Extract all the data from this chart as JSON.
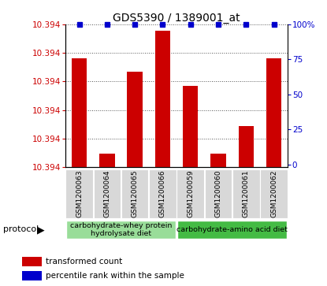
{
  "title": "GDS5390 / 1389001_at",
  "samples": [
    "GSM1200063",
    "GSM1200064",
    "GSM1200065",
    "GSM1200066",
    "GSM1200059",
    "GSM1200060",
    "GSM1200061",
    "GSM1200062"
  ],
  "bar_values": [
    10.3942,
    10.3935,
    10.3941,
    10.3944,
    10.394,
    10.3935,
    10.3937,
    10.3942
  ],
  "percentile_values": [
    100,
    100,
    100,
    100,
    100,
    100,
    100,
    100
  ],
  "bar_color": "#cc0000",
  "dot_color": "#0000cc",
  "ylim_left": [
    10.3934,
    10.39445
  ],
  "ylim_right": [
    -2,
    100
  ],
  "yticks_right": [
    0,
    25,
    50,
    75,
    100
  ],
  "ytick_labels_right": [
    "0",
    "25",
    "50",
    "75",
    "100%"
  ],
  "protocol_groups": [
    {
      "label": "carbohydrate-whey protein\nhydrolysate diet",
      "start": 0,
      "end": 4,
      "color": "#99dd99"
    },
    {
      "label": "carbohydrate-amino acid diet",
      "start": 4,
      "end": 8,
      "color": "#44bb44"
    }
  ],
  "legend_items": [
    {
      "label": "transformed count",
      "color": "#cc0000"
    },
    {
      "label": "percentile rank within the sample",
      "color": "#0000cc"
    }
  ],
  "protocol_label": "protocol",
  "plot_bg": "#ffffff",
  "label_bg": "#cccccc",
  "bar_border_color": "#888888"
}
